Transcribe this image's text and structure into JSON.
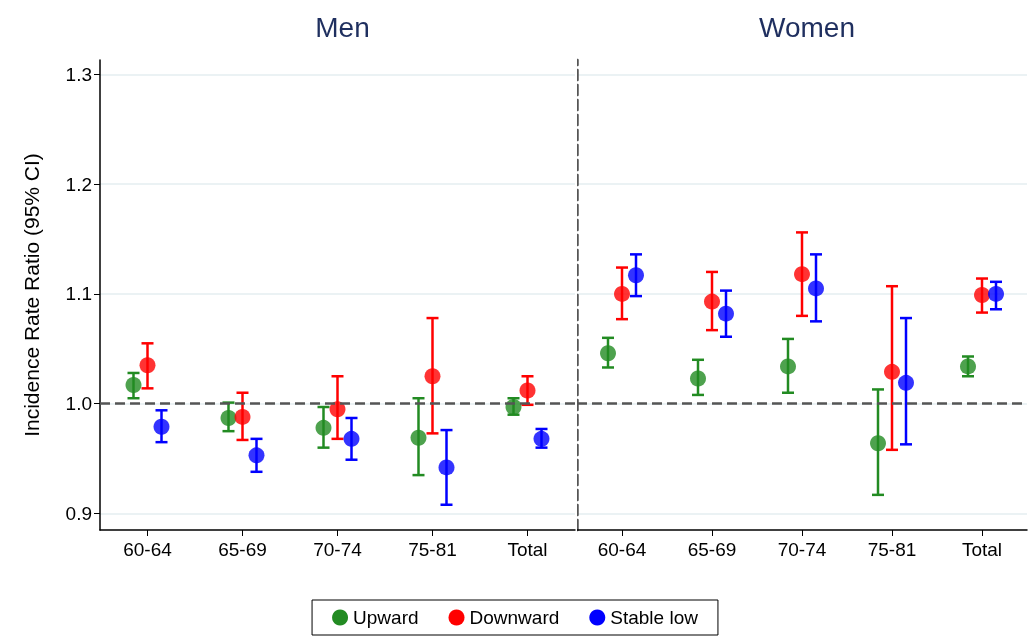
{
  "chart_data": [
    {
      "type": "scatter",
      "title": "Men",
      "ylabel": "Incidence Rate Ratio (95% CI)",
      "categories": [
        "60-64",
        "65-69",
        "70-74",
        "75-81",
        "Total"
      ],
      "series": [
        {
          "name": "Upward",
          "color": "#228b22",
          "values": [
            1.017,
            0.987,
            0.978,
            0.969,
            0.997
          ],
          "errors": [
            [
              1.005,
              1.028
            ],
            [
              0.975,
              1.001
            ],
            [
              0.96,
              0.997
            ],
            [
              0.935,
              1.005
            ],
            [
              0.99,
              1.005
            ]
          ]
        },
        {
          "name": "Downward",
          "color": "#ff0000",
          "values": [
            1.035,
            0.988,
            0.995,
            1.025,
            1.012
          ],
          "errors": [
            [
              1.014,
              1.055
            ],
            [
              0.967,
              1.01
            ],
            [
              0.968,
              1.025
            ],
            [
              0.973,
              1.078
            ],
            [
              0.999,
              1.025
            ]
          ]
        },
        {
          "name": "Stable low",
          "color": "#0000ff",
          "values": [
            0.979,
            0.953,
            0.968,
            0.942,
            0.968
          ],
          "errors": [
            [
              0.965,
              0.994
            ],
            [
              0.938,
              0.968
            ],
            [
              0.949,
              0.987
            ],
            [
              0.908,
              0.976
            ],
            [
              0.96,
              0.977
            ]
          ]
        }
      ],
      "ylim": [
        0.885,
        1.313
      ],
      "yticks": [
        {
          "value": 0.9,
          "label": "0.9"
        },
        {
          "value": 1.0,
          "label": "1.0"
        },
        {
          "value": 1.1,
          "label": "1.1"
        },
        {
          "value": 1.2,
          "label": "1.2"
        },
        {
          "value": 1.3,
          "label": "1.3"
        }
      ],
      "grid": "y",
      "marker": "circle",
      "legend": "bottom",
      "ref_lines": [
        {
          "axis": "y",
          "value": 1.0,
          "line_style": "dashed",
          "color": "#555555"
        }
      ]
    },
    {
      "type": "scatter",
      "title": "Women",
      "categories": [
        "60-64",
        "65-69",
        "70-74",
        "75-81",
        "Total"
      ],
      "series": [
        {
          "color": "#228b22",
          "values": [
            1.046,
            1.023,
            1.034,
            0.964,
            1.034
          ],
          "errors": [
            [
              1.033,
              1.06
            ],
            [
              1.008,
              1.04
            ],
            [
              1.01,
              1.059
            ],
            [
              0.917,
              1.013
            ],
            [
              1.025,
              1.043
            ]
          ]
        },
        {
          "color": "#ff0000",
          "values": [
            1.1,
            1.093,
            1.118,
            1.029,
            1.099
          ],
          "errors": [
            [
              1.077,
              1.124
            ],
            [
              1.067,
              1.12
            ],
            [
              1.08,
              1.156
            ],
            [
              0.958,
              1.107
            ],
            [
              1.083,
              1.114
            ]
          ]
        },
        {
          "color": "#0000ff",
          "values": [
            1.117,
            1.082,
            1.105,
            1.019,
            1.1
          ],
          "errors": [
            [
              1.098,
              1.136
            ],
            [
              1.061,
              1.103
            ],
            [
              1.075,
              1.136
            ],
            [
              0.963,
              1.078
            ],
            [
              1.086,
              1.111
            ]
          ]
        }
      ],
      "ylim": [
        0.885,
        1.313
      ],
      "yticks": [
        0.9,
        1.0,
        1.1,
        1.2,
        1.3
      ],
      "grid": "y",
      "marker": "circle",
      "tick_labels": "x",
      "ref_lines": [
        {
          "axis": "y",
          "value": 1.0,
          "line_style": "dashed",
          "color": "#555555"
        }
      ]
    }
  ]
}
